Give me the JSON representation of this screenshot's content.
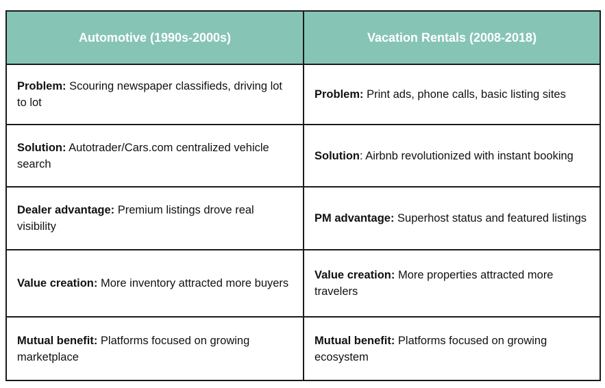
{
  "table": {
    "headers": [
      "Automotive (1990s-2000s)",
      "Vacation Rentals (2008-2018)"
    ],
    "rows": [
      {
        "left": {
          "label": "Problem:",
          "text": " Scouring newspaper classifieds, driving lot to lot"
        },
        "right": {
          "label": "Problem:",
          "text": " Print ads, phone calls, basic listing sites"
        }
      },
      {
        "left": {
          "label": "Solution:",
          "text": " Autotrader/Cars.com centralized vehicle search"
        },
        "right": {
          "label": "Solution",
          "text": ": Airbnb revolutionized with instant booking"
        }
      },
      {
        "left": {
          "label": "Dealer advantage:",
          "text": " Premium listings drove real visibility"
        },
        "right": {
          "label": "PM advantage:",
          "text": " Superhost status and featured listings"
        }
      },
      {
        "left": {
          "label": "Value creation:",
          "text": " More inventory attracted more buyers"
        },
        "right": {
          "label": "Value creation:",
          "text": " More properties attracted more travelers"
        }
      },
      {
        "left": {
          "label": "Mutual benefit:",
          "text": " Platforms focused on growing marketplace"
        },
        "right": {
          "label": "Mutual benefit:",
          "text": " Platforms focused on growing ecosystem"
        }
      }
    ],
    "colors": {
      "header_bg": "#86c4b6",
      "header_text": "#ffffff",
      "border": "#1a1a1a",
      "cell_text": "#111111"
    }
  }
}
